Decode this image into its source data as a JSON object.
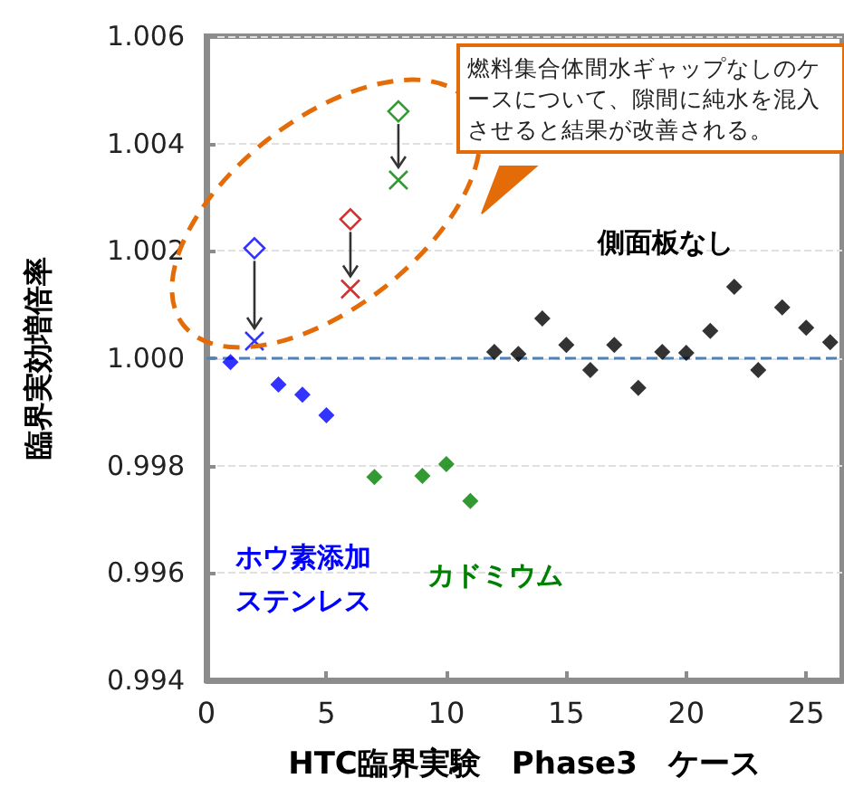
{
  "chart_data": {
    "type": "scatter",
    "xlabel": "HTC臨界実験　Phase3　ケース",
    "ylabel": "臨界実効増倍率",
    "xlim": [
      0,
      26.5
    ],
    "xticks": [
      0,
      5,
      10,
      15,
      20,
      25
    ],
    "ylim": [
      0.994,
      1.006
    ],
    "yticks": [
      {
        "value": 0.994,
        "label": "0.994"
      },
      {
        "value": 0.996,
        "label": "0.996"
      },
      {
        "value": 0.998,
        "label": "0.998"
      },
      {
        "value": 1.0,
        "label": "1.000"
      },
      {
        "value": 1.002,
        "label": "1.002"
      },
      {
        "value": 1.004,
        "label": "1.004"
      },
      {
        "value": 1.006,
        "label": "1.006"
      }
    ],
    "grid": "y",
    "legend": false,
    "marker": "diamond",
    "ref_lines": [
      {
        "axis": "y",
        "value": 1.0,
        "color": "#4f81bd",
        "line_style": "dashed"
      }
    ],
    "annotations": [
      "燃料集合体間水ギャップなしのケースについて、隙間に純水を混入させると結果が改善される。"
    ],
    "series": [
      {
        "name": "ホウ素添加ステンレス",
        "color": "#0000ff",
        "x": [
          1,
          3,
          4,
          5
        ],
        "values": [
          0.99993,
          0.99951,
          0.99932,
          0.99894
        ]
      },
      {
        "name": "カドミウム",
        "color": "#008000",
        "x": [
          7,
          9,
          10,
          11
        ],
        "values": [
          0.99779,
          0.99781,
          0.99803,
          0.99734
        ]
      },
      {
        "name": "側面板なし",
        "color": "#000000",
        "x": [
          12,
          13,
          14,
          15,
          16,
          17,
          18,
          19,
          20,
          21,
          22,
          23,
          24,
          25,
          26
        ],
        "values": [
          1.00012,
          1.00008,
          1.00074,
          1.00025,
          0.99978,
          1.00025,
          0.99945,
          1.00012,
          1.0001,
          1.00051,
          1.00133,
          0.99978,
          1.00095,
          1.00057,
          1.0003
        ]
      },
      {
        "colors": [
          "#0000ff",
          "#c00000",
          "#008000"
        ],
        "x": [
          2,
          6,
          8
        ],
        "values": [
          1.00205,
          1.00259,
          1.0046
        ]
      },
      {
        "colors": [
          "#0000ff",
          "#c00000",
          "#008000"
        ],
        "marker": "cross",
        "x": [
          2,
          6,
          8
        ],
        "values": [
          1.00032,
          1.00129,
          1.00332
        ]
      }
    ]
  }
}
